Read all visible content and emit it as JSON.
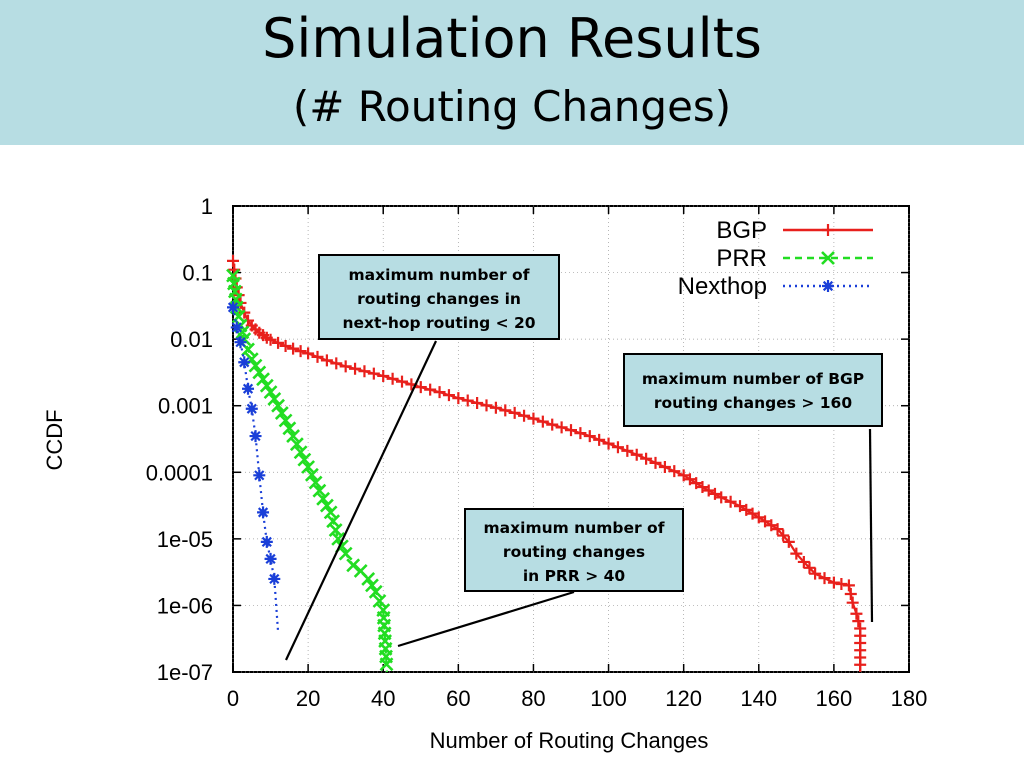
{
  "slide": {
    "title": "Simulation Results",
    "subtitle": "(# Routing Changes)"
  },
  "callouts": {
    "nexthop": [
      "maximum number of",
      "routing changes in",
      "next-hop routing < 20"
    ],
    "bgp": [
      "maximum number of BGP",
      "routing changes > 160"
    ],
    "prr": [
      "maximum number of",
      "routing changes",
      "in PRR > 40"
    ]
  },
  "colors": {
    "header_bg": "#b7dde3",
    "bgp": "#e8201c",
    "prr": "#22dd22",
    "nexthop": "#1a3fd8"
  },
  "chart_data": {
    "type": "line",
    "xlabel": "Number of Routing Changes",
    "ylabel": "CCDF",
    "xlim": [
      0,
      180
    ],
    "ylim": [
      1e-07,
      1
    ],
    "yscale": "log",
    "grid": true,
    "legend_position": "top-right",
    "x_ticks": [
      "0",
      "20",
      "40",
      "60",
      "80",
      "100",
      "120",
      "140",
      "160",
      "180"
    ],
    "y_ticks": [
      "1",
      "0.1",
      "0.01",
      "0.001",
      "0.0001",
      "1e-05",
      "1e-06",
      "1e-07"
    ],
    "series": [
      {
        "name": "BGP",
        "marker": "+",
        "linestyle": "solid",
        "x": [
          0,
          1,
          2,
          3,
          4,
          5,
          6,
          7,
          8,
          9,
          10,
          12,
          14,
          16,
          18,
          20,
          25,
          30,
          35,
          40,
          45,
          50,
          55,
          60,
          65,
          70,
          75,
          80,
          85,
          90,
          95,
          100,
          105,
          110,
          115,
          120,
          125,
          130,
          135,
          140,
          145,
          148,
          150,
          152,
          155,
          160,
          164,
          165,
          166,
          167,
          167
        ],
        "y": [
          0.15,
          0.06,
          0.035,
          0.025,
          0.019,
          0.016,
          0.014,
          0.0125,
          0.0115,
          0.0105,
          0.0098,
          0.0088,
          0.0079,
          0.0072,
          0.0066,
          0.0061,
          0.0048,
          0.0039,
          0.0033,
          0.0028,
          0.0023,
          0.0019,
          0.0016,
          0.0013,
          0.0011,
          0.00093,
          0.00078,
          0.00064,
          0.00052,
          0.00043,
          0.00035,
          0.00027,
          0.00021,
          0.00016,
          0.00012,
          9e-05,
          6e-05,
          4.2e-05,
          3.1e-05,
          2.1e-05,
          1.4e-05,
          9e-06,
          6e-06,
          4.5e-06,
          3e-06,
          2.2e-06,
          2e-06,
          1.1e-06,
          7.5e-07,
          4.5e-07,
          1e-07
        ]
      },
      {
        "name": "PRR",
        "marker": "x",
        "linestyle": "dashed",
        "x": [
          0,
          1,
          2,
          3,
          4,
          5,
          6,
          8,
          10,
          12,
          14,
          16,
          18,
          20,
          22,
          24,
          26,
          28,
          30,
          32,
          34,
          36,
          38,
          40,
          41
        ],
        "y": [
          0.09,
          0.03,
          0.016,
          0.01,
          0.007,
          0.005,
          0.004,
          0.0025,
          0.0016,
          0.001,
          0.0006,
          0.00035,
          0.0002,
          0.00012,
          7e-05,
          4e-05,
          2.5e-05,
          1e-05,
          6e-06,
          4e-06,
          3.3e-06,
          2.5e-06,
          1.6e-06,
          8.5e-07,
          1e-07
        ]
      },
      {
        "name": "Nexthop",
        "marker": "*",
        "linestyle": "dotted",
        "x": [
          0,
          1,
          2,
          3,
          4,
          5,
          6,
          7,
          8,
          9,
          10,
          11,
          12
        ],
        "y": [
          0.03,
          0.015,
          0.009,
          0.0045,
          0.0018,
          0.0009,
          0.00035,
          9e-05,
          2.5e-05,
          9e-06,
          5e-06,
          2.5e-06,
          4e-07
        ]
      }
    ]
  }
}
